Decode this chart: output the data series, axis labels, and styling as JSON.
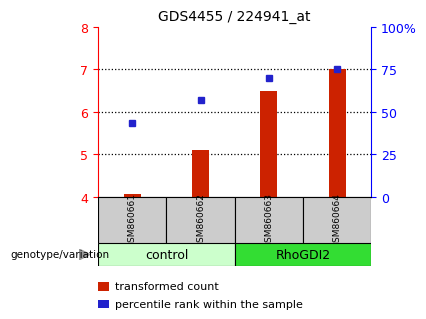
{
  "title": "GDS4455 / 224941_at",
  "samples": [
    "GSM860661",
    "GSM860662",
    "GSM860663",
    "GSM860664"
  ],
  "transformed_counts": [
    4.08,
    5.1,
    6.5,
    7.0
  ],
  "percentile_ranks": [
    5.75,
    6.27,
    6.8,
    7.0
  ],
  "ylim_left": [
    4,
    8
  ],
  "ylim_right": [
    0,
    100
  ],
  "yticks_left": [
    4,
    5,
    6,
    7,
    8
  ],
  "yticks_right": [
    0,
    25,
    50,
    75,
    100
  ],
  "ytick_labels_right": [
    "0",
    "25",
    "50",
    "75",
    "100%"
  ],
  "bar_color": "#cc2200",
  "dot_color": "#2222cc",
  "groups": [
    {
      "label": "control",
      "samples": [
        0,
        1
      ],
      "color": "#ccffcc"
    },
    {
      "label": "RhoGDI2",
      "samples": [
        2,
        3
      ],
      "color": "#33dd33"
    }
  ],
  "genotype_label": "genotype/variation",
  "legend_bar": "transformed count",
  "legend_dot": "percentile rank within the sample",
  "sample_box_color": "#cccccc",
  "bar_width": 0.25
}
